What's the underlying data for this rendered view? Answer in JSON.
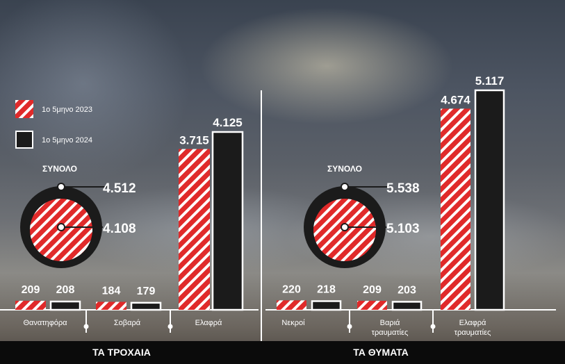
{
  "legend": [
    {
      "label": "1o 5μηνο 2023",
      "style": "hatched-red"
    },
    {
      "label": "1o 5μηνο 2024",
      "style": "dark-outline"
    }
  ],
  "colors": {
    "red": "#e02a2a",
    "white": "#ffffff",
    "dark": "#1b1b1b"
  },
  "chart_data": [
    {
      "type": "bar",
      "title": "ΤΑ ΤΡΟΧΑΙΑ",
      "categories": [
        "Θανατηφόρα",
        "Σοβαρά",
        "Ελαφρά"
      ],
      "series": [
        {
          "name": "1o 5μηνο 2023",
          "values": [
            209,
            184,
            3715
          ],
          "labels": [
            "209",
            "184",
            "3.715"
          ]
        },
        {
          "name": "1o 5μηνο 2024",
          "values": [
            208,
            179,
            4125
          ],
          "labels": [
            "208",
            "179",
            "4.125"
          ]
        }
      ],
      "total": {
        "label": "ΣΥΝΟΛΟ",
        "value_2023": 4108,
        "value_2024": 4512,
        "label_2023": "4.108",
        "label_2024": "4.512"
      }
    },
    {
      "type": "bar",
      "title": "ΤΑ ΘΥΜΑΤΑ",
      "categories": [
        "Νεκροί",
        "Βαριά τραυματίες",
        "Ελαφρά τραυματίες"
      ],
      "series": [
        {
          "name": "1o 5μηνο 2023",
          "values": [
            220,
            209,
            4674
          ],
          "labels": [
            "220",
            "209",
            "4.674"
          ]
        },
        {
          "name": "1o 5μηνο 2024",
          "values": [
            218,
            203,
            5117
          ],
          "labels": [
            "218",
            "203",
            "5.117"
          ]
        }
      ],
      "total": {
        "label": "ΣΥΝΟΛΟ",
        "value_2023": 5103,
        "value_2024": 5538,
        "label_2023": "5.103",
        "label_2024": "5.538"
      }
    }
  ]
}
